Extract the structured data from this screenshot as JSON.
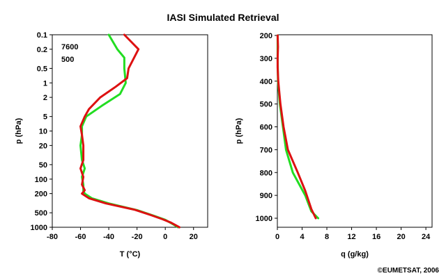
{
  "title": "IASI Simulated Retrieval",
  "copyright": "©EUMETSAT, 2006",
  "colors": {
    "series_green": "#22dd22",
    "series_red": "#dd1111"
  },
  "chart_data": [
    {
      "id": "temperature",
      "type": "line",
      "xlabel": "T (°C)",
      "ylabel": "p (hPa)",
      "xlim": [
        -80,
        30
      ],
      "ylim": [
        1000,
        0.1
      ],
      "yscale": "log",
      "x_ticks": [
        -80,
        -60,
        -40,
        -20,
        0,
        20
      ],
      "y_ticks": [
        {
          "v": 0.1,
          "label": "0.1"
        },
        {
          "v": 0.2,
          "label": "0.2"
        },
        {
          "v": 0.5,
          "label": "0.5"
        },
        {
          "v": 1,
          "label": "1"
        },
        {
          "v": 2,
          "label": "2"
        },
        {
          "v": 5,
          "label": "5"
        },
        {
          "v": 10,
          "label": "10"
        },
        {
          "v": 20,
          "label": "20"
        },
        {
          "v": 50,
          "label": "50"
        },
        {
          "v": 100,
          "label": "100"
        },
        {
          "v": 200,
          "label": "200"
        },
        {
          "v": 500,
          "label": "500"
        },
        {
          "v": 1000,
          "label": "1000"
        }
      ],
      "annotations": [
        "7600",
        "500"
      ],
      "series": [
        {
          "color": "#22dd22",
          "points": [
            [
              -40,
              0.1
            ],
            [
              -34,
              0.2
            ],
            [
              -29,
              0.3
            ],
            [
              -29,
              0.5
            ],
            [
              -28,
              1.0
            ],
            [
              -32,
              1.7
            ],
            [
              -45,
              3
            ],
            [
              -56,
              5
            ],
            [
              -59,
              8
            ],
            [
              -59,
              12
            ],
            [
              -60,
              20
            ],
            [
              -59,
              40
            ],
            [
              -57,
              60
            ],
            [
              -59,
              90
            ],
            [
              -58,
              130
            ],
            [
              -58,
              175
            ],
            [
              -57,
              200
            ],
            [
              -52,
              250
            ],
            [
              -40,
              320
            ],
            [
              -20,
              440
            ],
            [
              -8,
              580
            ],
            [
              0,
              700
            ],
            [
              5,
              850
            ],
            [
              9,
              1000
            ]
          ]
        },
        {
          "color": "#dd1111",
          "points": [
            [
              -29,
              0.1
            ],
            [
              -19,
              0.2
            ],
            [
              -26,
              0.5
            ],
            [
              -27,
              0.8
            ],
            [
              -35,
              1.2
            ],
            [
              -46,
              2
            ],
            [
              -54,
              3.5
            ],
            [
              -57,
              5
            ],
            [
              -60,
              8
            ],
            [
              -59,
              12
            ],
            [
              -58,
              20
            ],
            [
              -58,
              40
            ],
            [
              -60,
              60
            ],
            [
              -58,
              90
            ],
            [
              -59,
              130
            ],
            [
              -57,
              170
            ],
            [
              -59,
              200
            ],
            [
              -54,
              250
            ],
            [
              -42,
              320
            ],
            [
              -22,
              430
            ],
            [
              -10,
              560
            ],
            [
              -2,
              680
            ],
            [
              4,
              800
            ],
            [
              10,
              1000
            ]
          ]
        }
      ]
    },
    {
      "id": "humidity",
      "type": "line",
      "xlabel": "q (g/kg)",
      "ylabel": "p (hPa)",
      "xlim": [
        0,
        25
      ],
      "ylim": [
        200,
        1000
      ],
      "x_ticks": [
        0,
        4,
        8,
        12,
        16,
        20,
        24
      ],
      "y_ticks": [
        {
          "v": 200,
          "label": "200"
        },
        {
          "v": 300,
          "label": "300"
        },
        {
          "v": 400,
          "label": "400"
        },
        {
          "v": 500,
          "label": "500"
        },
        {
          "v": 600,
          "label": "600"
        },
        {
          "v": 700,
          "label": "700"
        },
        {
          "v": 800,
          "label": "800"
        },
        {
          "v": 900,
          "label": "900"
        },
        {
          "v": 1000,
          "label": "1000"
        }
      ],
      "series": [
        {
          "color": "#22dd22",
          "points": [
            [
              0.05,
              200
            ],
            [
              0.05,
              300
            ],
            [
              0.1,
              400
            ],
            [
              0.4,
              500
            ],
            [
              0.9,
              600
            ],
            [
              1.4,
              700
            ],
            [
              2.5,
              800
            ],
            [
              4.5,
              900
            ],
            [
              5.5,
              970
            ],
            [
              6.6,
              1000
            ]
          ]
        },
        {
          "color": "#dd1111",
          "points": [
            [
              0.05,
              200
            ],
            [
              0.1,
              250
            ],
            [
              0.05,
              300
            ],
            [
              0.05,
              340
            ],
            [
              0.15,
              400
            ],
            [
              0.5,
              500
            ],
            [
              1.0,
              600
            ],
            [
              1.7,
              700
            ],
            [
              3.3,
              800
            ],
            [
              4.5,
              880
            ],
            [
              5.5,
              960
            ],
            [
              6.2,
              1000
            ]
          ]
        }
      ]
    }
  ]
}
